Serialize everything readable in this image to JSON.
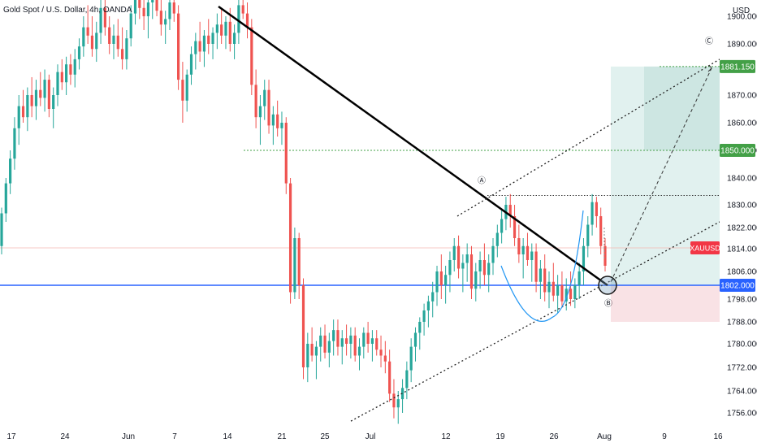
{
  "header": {
    "symbol_info": "Gold Spot / U.S. Dollar, 4h, OANDA",
    "currency": "USD"
  },
  "colors": {
    "up": "#26a69a",
    "down": "#ef5350",
    "support": "#2962ff",
    "target": "#43a047",
    "trend": "#000000",
    "zone_profit": "#d7ece9",
    "zone_loss": "#f8dde0",
    "symbol_tag": "#f23645",
    "curve": "#2196f3"
  },
  "chart_data": {
    "type": "candlestick",
    "instrument": "XAUUSD",
    "timeframe": "4h",
    "x_ticks": [
      "17",
      "24",
      "Jun",
      "7",
      "14",
      "21",
      "25",
      "Jul",
      "12",
      "19",
      "26",
      "Aug",
      "9",
      "16"
    ],
    "y_ticks": [
      "1756.000",
      "1764.000",
      "1772.000",
      "1780.000",
      "1788.000",
      "1798.000",
      "1806.000",
      "1814.000",
      "1822.000",
      "1830.000",
      "1840.000",
      "1850.000",
      "1860.000",
      "1870.000",
      "1890.000",
      "1900.000"
    ],
    "price_labels": [
      {
        "text": "1881.150",
        "value": 1881.15,
        "style": "target"
      },
      {
        "text": "1850.000",
        "value": 1850.0,
        "style": "target"
      },
      {
        "text": "XAUUSD",
        "value": 1814.3,
        "style": "symbol"
      },
      {
        "text": "1802.000",
        "value": 1802.0,
        "style": "support"
      }
    ],
    "points": [
      {
        "label": "Ⓐ",
        "date": "Jul 16",
        "value": 1838
      },
      {
        "label": "Ⓑ",
        "date": "Aug 1",
        "value": 1795
      },
      {
        "label": "Ⓒ",
        "date": "Aug 16",
        "value": 1890
      }
    ],
    "horizontal_levels": [
      {
        "name": "support",
        "value": 1802.0
      },
      {
        "name": "resistance",
        "value": 1833.5
      },
      {
        "name": "target-1",
        "value": 1850.0
      },
      {
        "name": "target-2",
        "value": 1881.15
      },
      {
        "name": "current",
        "value": 1814.3
      }
    ],
    "anchor_points": [
      {
        "x": 271,
        "y": 1903
      },
      {
        "x": 748,
        "y": 1802
      },
      {
        "x": 432,
        "y": 1753
      },
      {
        "x": 886,
        "y": 1824
      },
      {
        "x": 563,
        "y": 1825
      },
      {
        "x": 886,
        "y": 1883
      },
      {
        "x": 752,
        "y": 1803
      },
      {
        "x": 878,
        "y": 1881
      }
    ],
    "candles": [
      [
        1815,
        1829,
        1812,
        1827
      ],
      [
        1827,
        1840,
        1824,
        1838
      ],
      [
        1838,
        1850,
        1834,
        1847
      ],
      [
        1847,
        1862,
        1843,
        1858
      ],
      [
        1858,
        1870,
        1852,
        1866
      ],
      [
        1866,
        1872,
        1860,
        1862
      ],
      [
        1862,
        1873,
        1857,
        1870
      ],
      [
        1870,
        1877,
        1862,
        1866
      ],
      [
        1866,
        1876,
        1861,
        1872
      ],
      [
        1872,
        1879,
        1866,
        1869
      ],
      [
        1869,
        1880,
        1864,
        1876
      ],
      [
        1876,
        1878,
        1862,
        1865
      ],
      [
        1865,
        1873,
        1858,
        1870
      ],
      [
        1870,
        1882,
        1866,
        1879
      ],
      [
        1879,
        1884,
        1872,
        1875
      ],
      [
        1875,
        1885,
        1870,
        1882
      ],
      [
        1882,
        1886,
        1874,
        1878
      ],
      [
        1878,
        1888,
        1873,
        1884
      ],
      [
        1884,
        1892,
        1880,
        1889
      ],
      [
        1889,
        1900,
        1885,
        1896
      ],
      [
        1896,
        1904,
        1890,
        1893
      ],
      [
        1893,
        1900,
        1885,
        1888
      ],
      [
        1888,
        1898,
        1883,
        1894
      ],
      [
        1894,
        1906,
        1890,
        1903
      ],
      [
        1903,
        1908,
        1893,
        1896
      ],
      [
        1896,
        1900,
        1886,
        1890
      ],
      [
        1890,
        1897,
        1884,
        1893
      ],
      [
        1893,
        1899,
        1885,
        1888
      ],
      [
        1888,
        1896,
        1880,
        1884
      ],
      [
        1884,
        1895,
        1880,
        1892
      ],
      [
        1892,
        1904,
        1889,
        1901
      ],
      [
        1901,
        1910,
        1897,
        1906
      ],
      [
        1906,
        1912,
        1899,
        1903
      ],
      [
        1903,
        1909,
        1895,
        1900
      ],
      [
        1900,
        1907,
        1892,
        1905
      ],
      [
        1905,
        1913,
        1899,
        1908
      ],
      [
        1908,
        1914,
        1900,
        1902
      ],
      [
        1902,
        1906,
        1893,
        1897
      ],
      [
        1897,
        1902,
        1890,
        1899
      ],
      [
        1899,
        1908,
        1895,
        1905
      ],
      [
        1905,
        1912,
        1898,
        1901
      ],
      [
        1901,
        1904,
        1872,
        1876
      ],
      [
        1876,
        1883,
        1860,
        1868
      ],
      [
        1868,
        1880,
        1864,
        1878
      ],
      [
        1878,
        1889,
        1874,
        1886
      ],
      [
        1886,
        1894,
        1880,
        1891
      ],
      [
        1891,
        1898,
        1883,
        1887
      ],
      [
        1887,
        1895,
        1881,
        1893
      ],
      [
        1893,
        1899,
        1886,
        1890
      ],
      [
        1890,
        1896,
        1884,
        1894
      ],
      [
        1894,
        1901,
        1888,
        1897
      ],
      [
        1897,
        1903,
        1890,
        1893
      ],
      [
        1893,
        1900,
        1888,
        1898
      ],
      [
        1898,
        1903,
        1887,
        1890
      ],
      [
        1890,
        1897,
        1884,
        1894
      ],
      [
        1894,
        1908,
        1890,
        1904
      ],
      [
        1904,
        1910,
        1899,
        1901
      ],
      [
        1901,
        1905,
        1892,
        1896
      ],
      [
        1896,
        1899,
        1870,
        1874
      ],
      [
        1874,
        1880,
        1858,
        1862
      ],
      [
        1862,
        1870,
        1852,
        1866
      ],
      [
        1866,
        1876,
        1861,
        1872
      ],
      [
        1872,
        1876,
        1856,
        1859
      ],
      [
        1859,
        1866,
        1852,
        1863
      ],
      [
        1863,
        1868,
        1855,
        1858
      ],
      [
        1858,
        1864,
        1852,
        1860
      ],
      [
        1860,
        1862,
        1834,
        1838
      ],
      [
        1838,
        1840,
        1796,
        1800
      ],
      [
        1800,
        1822,
        1798,
        1818
      ],
      [
        1818,
        1820,
        1798,
        1802
      ],
      [
        1802,
        1804,
        1768,
        1772
      ],
      [
        1772,
        1784,
        1767,
        1780
      ],
      [
        1780,
        1786,
        1774,
        1776
      ],
      [
        1776,
        1781,
        1768,
        1779
      ],
      [
        1779,
        1786,
        1774,
        1783
      ],
      [
        1783,
        1787,
        1775,
        1777
      ],
      [
        1777,
        1784,
        1772,
        1781
      ],
      [
        1781,
        1789,
        1776,
        1785
      ],
      [
        1785,
        1789,
        1776,
        1779
      ],
      [
        1779,
        1785,
        1773,
        1782
      ],
      [
        1782,
        1787,
        1776,
        1780
      ],
      [
        1780,
        1786,
        1775,
        1783
      ],
      [
        1783,
        1786,
        1774,
        1776
      ],
      [
        1776,
        1782,
        1771,
        1779
      ],
      [
        1779,
        1786,
        1775,
        1784
      ],
      [
        1784,
        1788,
        1777,
        1780
      ],
      [
        1780,
        1785,
        1774,
        1782
      ],
      [
        1782,
        1785,
        1776,
        1778
      ],
      [
        1778,
        1783,
        1772,
        1776
      ],
      [
        1776,
        1781,
        1770,
        1774
      ],
      [
        1774,
        1778,
        1760,
        1763
      ],
      [
        1763,
        1768,
        1754,
        1758
      ],
      [
        1758,
        1764,
        1752,
        1761
      ],
      [
        1761,
        1768,
        1756,
        1765
      ],
      [
        1765,
        1774,
        1761,
        1771
      ],
      [
        1771,
        1782,
        1767,
        1779
      ],
      [
        1779,
        1786,
        1774,
        1784
      ],
      [
        1784,
        1790,
        1778,
        1788
      ],
      [
        1788,
        1796,
        1783,
        1793
      ],
      [
        1793,
        1799,
        1786,
        1797
      ],
      [
        1797,
        1803,
        1790,
        1800
      ],
      [
        1800,
        1808,
        1795,
        1806
      ],
      [
        1806,
        1812,
        1798,
        1802
      ],
      [
        1802,
        1808,
        1796,
        1805
      ],
      [
        1805,
        1813,
        1800,
        1810
      ],
      [
        1810,
        1818,
        1806,
        1815
      ],
      [
        1815,
        1819,
        1804,
        1807
      ],
      [
        1807,
        1812,
        1800,
        1809
      ],
      [
        1809,
        1816,
        1803,
        1812
      ],
      [
        1812,
        1815,
        1798,
        1801
      ],
      [
        1801,
        1809,
        1797,
        1806
      ],
      [
        1806,
        1813,
        1801,
        1810
      ],
      [
        1810,
        1816,
        1802,
        1805
      ],
      [
        1805,
        1812,
        1800,
        1809
      ],
      [
        1809,
        1818,
        1805,
        1815
      ],
      [
        1815,
        1823,
        1811,
        1820
      ],
      [
        1820,
        1828,
        1816,
        1825
      ],
      [
        1825,
        1833,
        1821,
        1830
      ],
      [
        1830,
        1834,
        1822,
        1826
      ],
      [
        1826,
        1830,
        1815,
        1818
      ],
      [
        1818,
        1823,
        1809,
        1812
      ],
      [
        1812,
        1818,
        1804,
        1815
      ],
      [
        1815,
        1820,
        1808,
        1810
      ],
      [
        1810,
        1816,
        1803,
        1813
      ],
      [
        1813,
        1816,
        1800,
        1803
      ],
      [
        1803,
        1810,
        1798,
        1807
      ],
      [
        1807,
        1812,
        1797,
        1800
      ],
      [
        1800,
        1806,
        1794,
        1803
      ],
      [
        1803,
        1809,
        1797,
        1799
      ],
      [
        1799,
        1805,
        1792,
        1802
      ],
      [
        1802,
        1806,
        1795,
        1797
      ],
      [
        1797,
        1804,
        1793,
        1801
      ],
      [
        1801,
        1806,
        1795,
        1798
      ],
      [
        1798,
        1804,
        1794,
        1802
      ],
      [
        1802,
        1809,
        1798,
        1806
      ],
      [
        1806,
        1818,
        1802,
        1815
      ],
      [
        1815,
        1826,
        1811,
        1823
      ],
      [
        1823,
        1834,
        1819,
        1831
      ],
      [
        1831,
        1833,
        1822,
        1826
      ],
      [
        1826,
        1829,
        1812,
        1815
      ],
      [
        1815,
        1818,
        1806,
        1808
      ]
    ]
  }
}
